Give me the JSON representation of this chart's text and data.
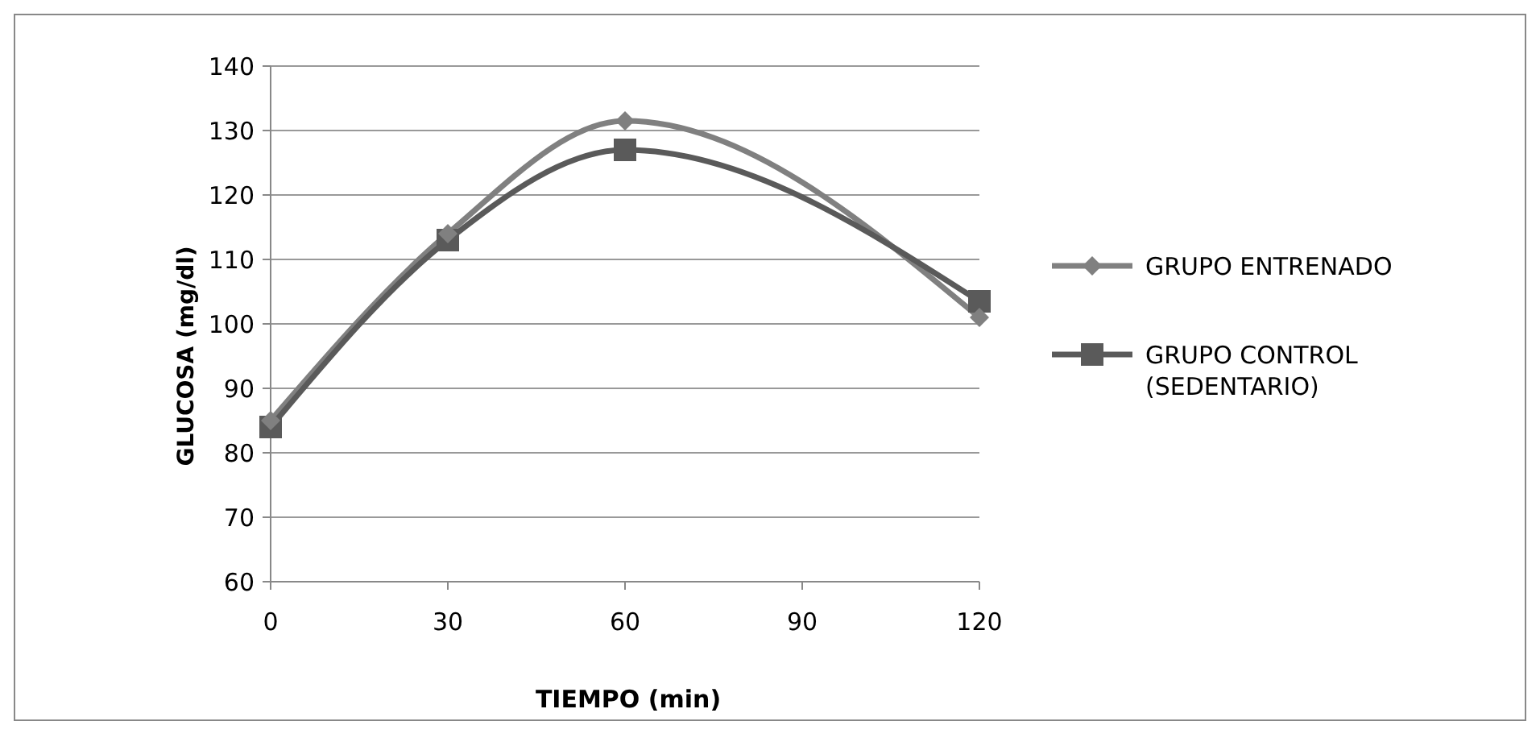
{
  "chart_data": {
    "type": "line",
    "xlabel": "TIEMPO (min)",
    "ylabel": "GLUCOSA (mg/dl)",
    "x": [
      0,
      30,
      60,
      120
    ],
    "xlim": [
      0,
      120
    ],
    "xticks": [
      0,
      30,
      60,
      90,
      120
    ],
    "ylim": [
      60,
      140
    ],
    "yticks": [
      60,
      70,
      80,
      90,
      100,
      110,
      120,
      130,
      140
    ],
    "grid": "y",
    "legend": "right",
    "series": [
      {
        "name": "GRUPO ENTRENADO",
        "color": "#808080",
        "marker": "diamond",
        "values": [
          85,
          114,
          131.5,
          101
        ]
      },
      {
        "name": "GRUPO CONTROL (SEDENTARIO)",
        "color": "#5a5a5a",
        "marker": "square",
        "values": [
          84,
          113,
          127,
          103.5
        ]
      }
    ]
  }
}
